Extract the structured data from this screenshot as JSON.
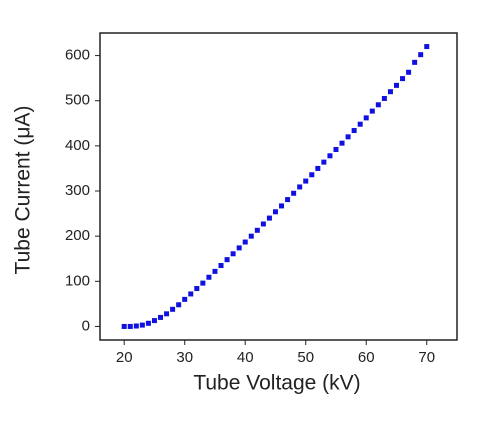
{
  "chart_data": {
    "type": "scatter",
    "xlabel": "Tube Voltage (kV)",
    "ylabel": "Tube Current (μA)",
    "x": [
      20,
      21,
      22,
      23,
      24,
      25,
      26,
      27,
      28,
      29,
      30,
      31,
      32,
      33,
      34,
      35,
      36,
      37,
      38,
      39,
      40,
      41,
      42,
      43,
      44,
      45,
      46,
      47,
      48,
      49,
      50,
      51,
      52,
      53,
      54,
      55,
      56,
      57,
      58,
      59,
      60,
      61,
      62,
      63,
      64,
      65,
      66,
      67,
      68,
      69,
      70
    ],
    "values": [
      0,
      0,
      1,
      3,
      7,
      13,
      20,
      28,
      38,
      48,
      60,
      72,
      84,
      96,
      109,
      122,
      135,
      148,
      161,
      174,
      187,
      200,
      213,
      227,
      240,
      254,
      267,
      281,
      295,
      309,
      322,
      336,
      350,
      364,
      378,
      392,
      406,
      420,
      434,
      448,
      462,
      477,
      491,
      505,
      520,
      534,
      549,
      563,
      585,
      602,
      620
    ],
    "color": "#1010e0",
    "xlim": [
      16,
      75
    ],
    "xticks": [
      20,
      30,
      40,
      50,
      60,
      70
    ],
    "ylim": [
      -30,
      650
    ],
    "yticks": [
      0,
      100,
      200,
      300,
      400,
      500,
      600
    ]
  }
}
